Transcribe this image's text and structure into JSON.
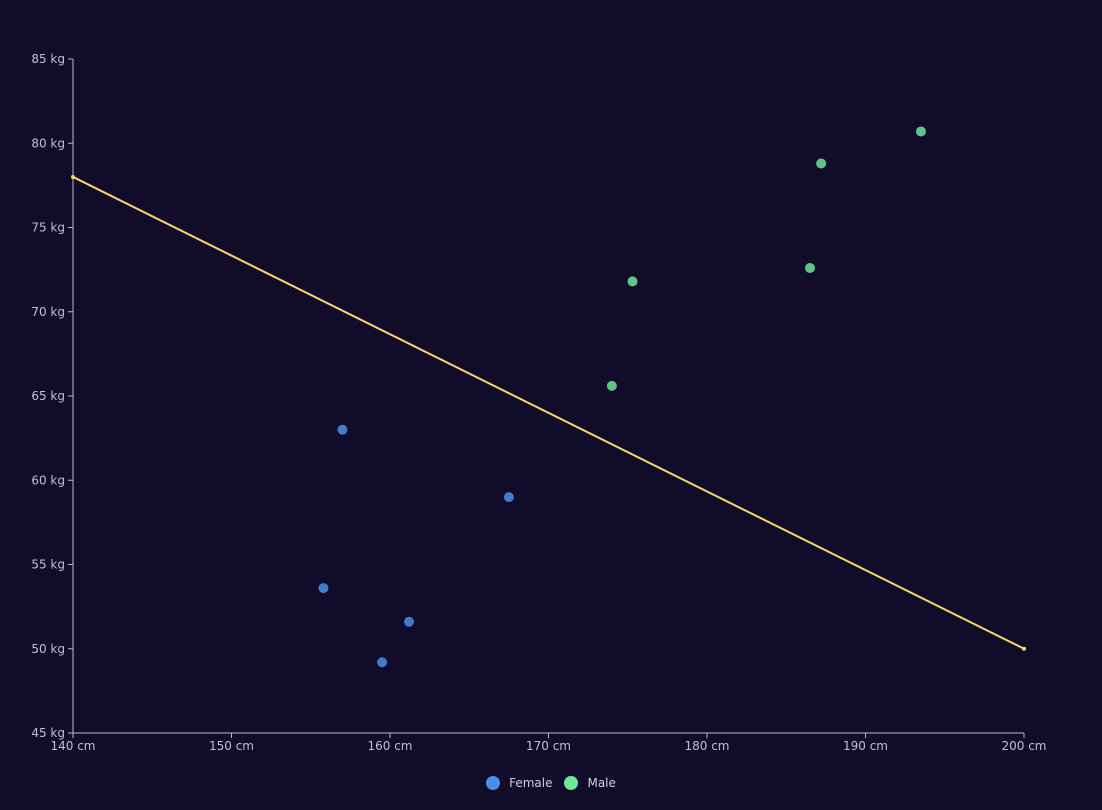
{
  "chart_data": {
    "type": "scatter",
    "title": "",
    "xlabel": "",
    "ylabel": "",
    "x_unit": "cm",
    "y_unit": "kg",
    "xlim": [
      140,
      200
    ],
    "ylim": [
      45,
      85
    ],
    "x_ticks": [
      "140 cm",
      "150 cm",
      "160 cm",
      "170 cm",
      "180 cm",
      "190 cm",
      "200 cm"
    ],
    "y_ticks": [
      "45 kg",
      "50 kg",
      "55 kg",
      "60 kg",
      "65 kg",
      "70 kg",
      "75 kg",
      "80 kg",
      "85 kg"
    ],
    "grid": false,
    "legend_position": "bottom-center",
    "series": [
      {
        "name": "Female",
        "type": "scatter",
        "color": "#4a8fe8",
        "points": [
          [
            157.0,
            63.0
          ],
          [
            155.8,
            53.6
          ],
          [
            161.2,
            51.6
          ],
          [
            159.5,
            49.2
          ],
          [
            167.5,
            59.0
          ]
        ]
      },
      {
        "name": "Male",
        "type": "scatter",
        "color": "#6ee59a",
        "points": [
          [
            174.0,
            65.6
          ],
          [
            175.3,
            71.8
          ],
          [
            186.5,
            72.6
          ],
          [
            187.2,
            78.8
          ],
          [
            193.5,
            80.7
          ]
        ]
      },
      {
        "type": "line",
        "color": "#f5d76e",
        "points": [
          [
            140,
            78
          ],
          [
            200,
            50
          ]
        ]
      }
    ]
  },
  "legend": {
    "female_label": "Female",
    "male_label": "Male"
  }
}
